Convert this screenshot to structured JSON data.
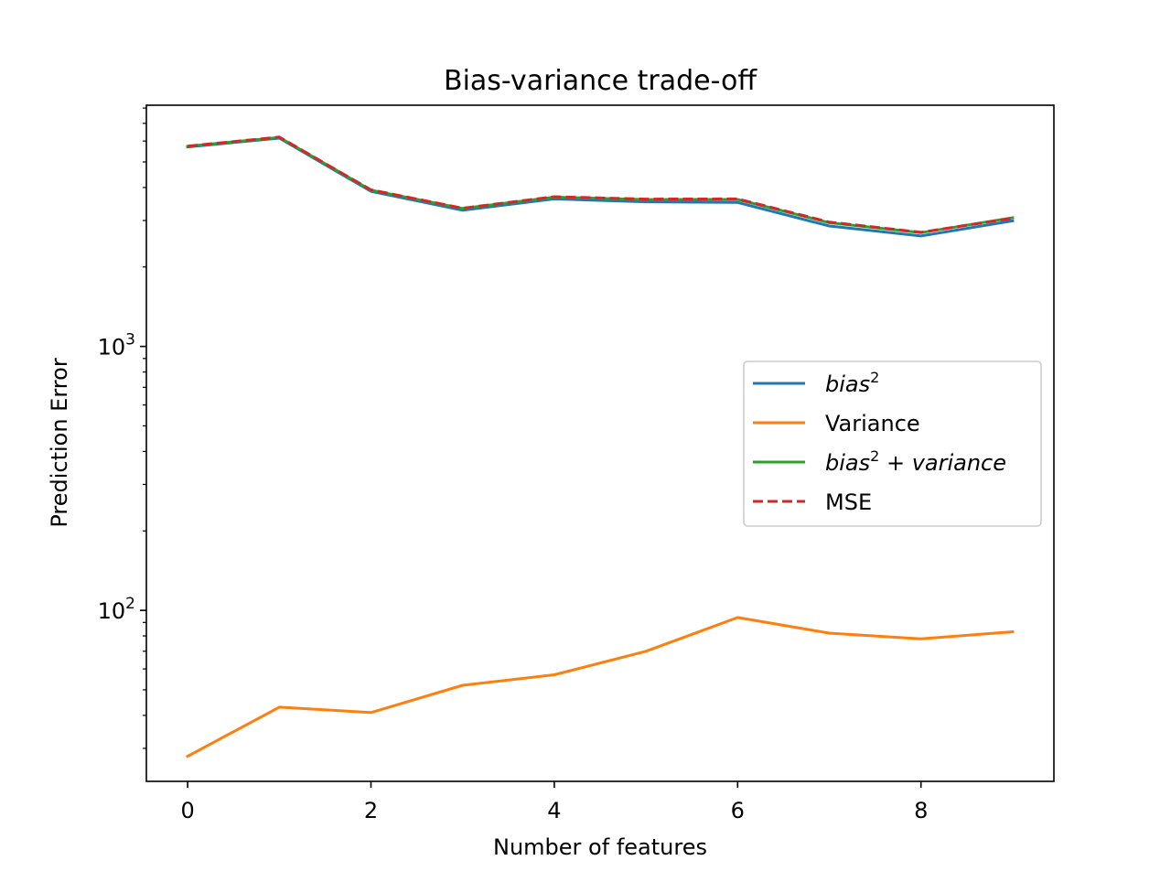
{
  "chart_data": {
    "type": "line",
    "title": "Bias-variance trade-off",
    "xlabel": "Number of features",
    "ylabel": "Prediction Error",
    "yscale": "log",
    "xlim": [
      -0.45,
      9.45
    ],
    "ylim": [
      22.5,
      8200
    ],
    "x": [
      0,
      1,
      2,
      3,
      4,
      5,
      6,
      7,
      8,
      9
    ],
    "x_ticks": [
      0,
      2,
      4,
      6,
      8
    ],
    "x_tick_labels": [
      "0",
      "2",
      "4",
      "6",
      "8"
    ],
    "y_major_ticks": [
      {
        "value": 100,
        "base": "10",
        "exp": "2"
      },
      {
        "value": 1000,
        "base": "10",
        "exp": "3"
      }
    ],
    "y_minor_ticks": [
      30,
      40,
      50,
      60,
      70,
      80,
      90,
      200,
      300,
      400,
      500,
      600,
      700,
      800,
      900,
      2000,
      3000,
      4000,
      5000,
      6000,
      7000,
      8000
    ],
    "series": [
      {
        "name": "bias²",
        "legend_label": {
          "base": "bias",
          "sup": "2",
          "rest": ""
        },
        "color": "#1f77b4",
        "style": "solid",
        "values": [
          5700,
          6150,
          3870,
          3280,
          3620,
          3530,
          3510,
          2860,
          2620,
          2990
        ]
      },
      {
        "name": "Variance",
        "legend_label": {
          "plain": "Variance"
        },
        "color": "#ff7f0e",
        "style": "solid",
        "values": [
          28,
          43,
          41,
          52,
          57,
          70,
          94,
          82,
          78,
          83
        ]
      },
      {
        "name": "bias² + variance",
        "legend_label": {
          "base": "bias",
          "sup": "2",
          "rest": "+ variance"
        },
        "color": "#2ca02c",
        "style": "solid",
        "values": [
          5728,
          6193,
          3911,
          3332,
          3677,
          3600,
          3604,
          2942,
          2698,
          3073
        ]
      },
      {
        "name": "MSE",
        "legend_label": {
          "plain": "MSE"
        },
        "color": "#d62728",
        "style": "dashed",
        "values": [
          5740,
          6210,
          3920,
          3340,
          3690,
          3615,
          3620,
          2960,
          2705,
          3060
        ]
      }
    ],
    "legend_position": "center-right",
    "grid": false
  }
}
